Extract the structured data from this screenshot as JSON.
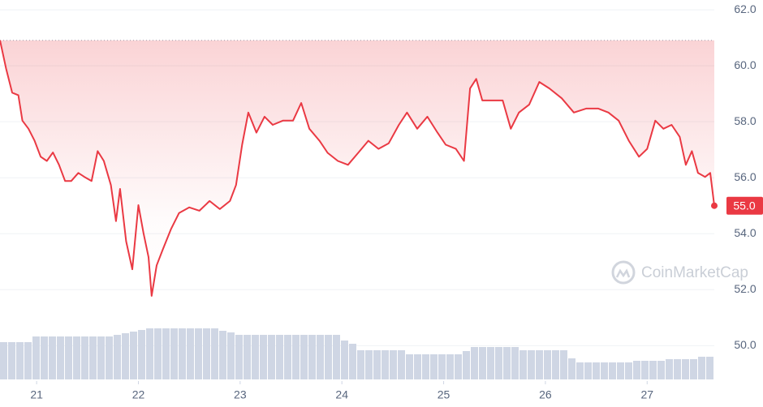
{
  "chart_data": {
    "type": "line",
    "watermark": "CoinMarketCap",
    "series": [
      {
        "color": "#ea3943",
        "x": [
          20.64,
          20.7,
          20.76,
          20.82,
          20.86,
          20.92,
          20.98,
          21.04,
          21.1,
          21.16,
          21.22,
          21.28,
          21.34,
          21.41,
          21.47,
          21.54,
          21.6,
          21.66,
          21.73,
          21.78,
          21.82,
          21.88,
          21.94,
          22.0,
          22.05,
          22.1,
          22.13,
          22.18,
          22.24,
          22.32,
          22.4,
          22.5,
          22.6,
          22.7,
          22.8,
          22.9,
          22.96,
          23.02,
          23.08,
          23.16,
          23.24,
          23.32,
          23.42,
          23.52,
          23.6,
          23.68,
          23.78,
          23.86,
          23.96,
          24.06,
          24.16,
          24.26,
          24.36,
          24.46,
          24.56,
          24.64,
          24.74,
          24.84,
          24.94,
          25.02,
          25.12,
          25.2,
          25.26,
          25.32,
          25.38,
          25.48,
          25.58,
          25.66,
          25.74,
          25.84,
          25.94,
          26.04,
          26.16,
          26.28,
          26.4,
          26.52,
          26.62,
          26.72,
          26.82,
          26.92,
          27.0,
          27.08,
          27.16,
          27.24,
          27.32,
          27.38,
          27.44,
          27.5,
          27.57,
          27.62,
          27.66
        ],
        "values": [
          60.91,
          59.9,
          59.04,
          58.95,
          58.04,
          57.75,
          57.32,
          56.75,
          56.6,
          56.9,
          56.46,
          55.88,
          55.88,
          56.17,
          56.03,
          55.88,
          56.95,
          56.6,
          55.74,
          54.45,
          55.6,
          53.73,
          52.73,
          55.02,
          54.02,
          53.16,
          51.78,
          52.87,
          53.44,
          54.16,
          54.74,
          54.94,
          54.82,
          55.17,
          54.88,
          55.17,
          55.74,
          57.18,
          58.33,
          57.61,
          58.18,
          57.89,
          58.04,
          58.04,
          58.67,
          57.75,
          57.32,
          56.89,
          56.6,
          56.46,
          56.89,
          57.32,
          57.03,
          57.23,
          57.89,
          58.33,
          57.75,
          58.18,
          57.61,
          57.18,
          57.03,
          56.6,
          59.19,
          59.53,
          58.76,
          58.76,
          58.76,
          57.75,
          58.33,
          58.61,
          59.42,
          59.19,
          58.84,
          58.33,
          58.47,
          58.47,
          58.33,
          58.04,
          57.32,
          56.75,
          57.03,
          58.04,
          57.75,
          57.89,
          57.46,
          56.46,
          56.95,
          56.17,
          56.03,
          56.17,
          55.0
        ]
      }
    ],
    "reference_line": 60.91,
    "last_price": {
      "value": 55.0,
      "label": "55.0"
    },
    "xlim": [
      20.64,
      27.66
    ],
    "xticks": [
      21,
      22,
      23,
      24,
      25,
      26,
      27
    ],
    "ylim": [
      49.43,
      62.35
    ],
    "yticks": [
      {
        "value": 50,
        "label": "50.0"
      },
      {
        "value": 52,
        "label": "52.0"
      },
      {
        "value": 54,
        "label": "54.0"
      },
      {
        "value": 56,
        "label": "56.0"
      },
      {
        "value": 58,
        "label": "58.0"
      },
      {
        "value": 60,
        "label": "60.0"
      },
      {
        "value": 62,
        "label": "62.0"
      }
    ],
    "grid": true,
    "volume": {
      "color": "#cfd6e4",
      "ylim": [
        0,
        70
      ],
      "values": [
        46,
        46,
        46,
        46,
        53,
        53,
        53,
        53,
        53,
        53,
        53,
        53,
        53,
        53,
        55,
        57,
        59,
        61,
        63,
        63,
        63,
        63,
        63,
        63,
        63,
        63,
        63,
        60,
        58,
        55,
        55,
        55,
        55,
        55,
        55,
        55,
        55,
        55,
        55,
        55,
        55,
        55,
        48,
        44,
        36,
        36,
        36,
        36,
        36,
        36,
        31,
        31,
        31,
        31,
        31,
        31,
        31,
        35,
        40,
        40,
        40,
        40,
        40,
        40,
        36,
        36,
        36,
        36,
        36,
        36,
        26,
        21,
        21,
        21,
        21,
        21,
        21,
        21,
        23,
        23,
        23,
        23,
        25,
        25,
        25,
        25,
        28,
        28
      ]
    }
  }
}
